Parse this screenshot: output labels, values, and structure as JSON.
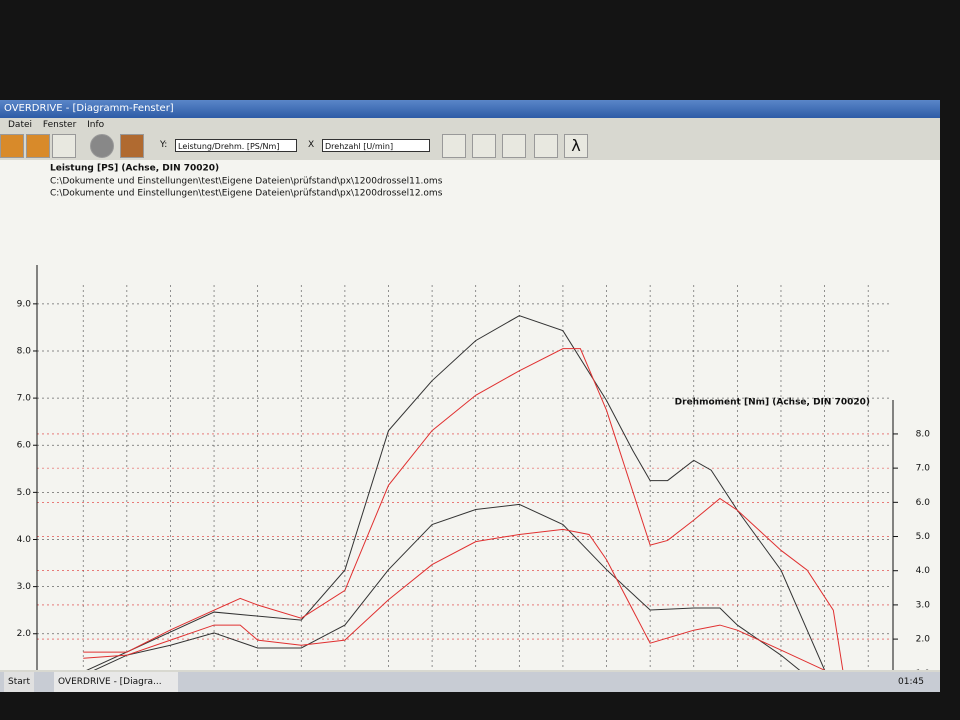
{
  "window": {
    "title": "OVERDRIVE - [Diagramm-Fenster]",
    "menu": [
      "Datei",
      "Fenster",
      "Info"
    ],
    "y_label": "Y:",
    "y_select": "Leistung/Drehm. [PS/Nm]",
    "x_label": "X",
    "x_select": "Drehzahl [U/min]",
    "lambda": "λ",
    "start": "Start",
    "task": "OVERDRIVE - [Diagra...",
    "clock": "01:45"
  },
  "chart_data": {
    "type": "line",
    "title": "Leistung [PS] (Achse, DIN 70020)",
    "y2_title": "Drehmoment [Nm] (Achse, DIN 70020)",
    "x_label": "Drehzahl [U/min]",
    "xlim": [
      4470,
      14250
    ],
    "xticks": [
      5000,
      5500,
      6000,
      6500,
      7000,
      7500,
      8000,
      8500,
      9000,
      9500,
      10000,
      10500,
      11000,
      11500,
      12000,
      12500,
      13000,
      13500,
      14000
    ],
    "ylim": [
      0,
      9.4
    ],
    "yticks": [
      {
        "value": 0,
        "label": "0.0"
      },
      {
        "value": 1,
        "label": "1.0"
      },
      {
        "value": 2,
        "label": "2.0"
      },
      {
        "value": 3,
        "label": "3.0"
      },
      {
        "value": 4,
        "label": "4.0"
      },
      {
        "value": 5,
        "label": "5.0"
      },
      {
        "value": 6,
        "label": "6.0"
      },
      {
        "value": 7,
        "label": "7.0"
      },
      {
        "value": 8,
        "label": "8.0"
      },
      {
        "value": 9,
        "label": "9.0"
      }
    ],
    "y2lim": [
      -0.6,
      8.7
    ],
    "y2ticks": [
      {
        "value": 0,
        "label": "0.0"
      },
      {
        "value": 1,
        "label": "1.0"
      },
      {
        "value": 2,
        "label": "2.0"
      },
      {
        "value": 3,
        "label": "3.0"
      },
      {
        "value": 4,
        "label": "4.0"
      },
      {
        "value": 5,
        "label": "5.0"
      },
      {
        "value": 6,
        "label": "6.0"
      },
      {
        "value": 7,
        "label": "7.0"
      },
      {
        "value": 8,
        "label": "8.0"
      }
    ],
    "grid": true,
    "series": [
      {
        "name": "C:\\Dokumente und Einstellungen\\test\\Eigene Dateien\\prüfstand\\px\\1200drossel11.oms",
        "color": "#333333",
        "x": [
          5000,
          6500,
          7500,
          8000,
          8500,
          9000,
          9500,
          10000,
          10500,
          11000,
          11300,
          11500,
          11700,
          12000,
          12200,
          12500,
          13000,
          13500,
          13600
        ],
        "values": [
          1.19,
          2.46,
          2.29,
          3.35,
          6.31,
          7.37,
          8.22,
          8.75,
          8.43,
          6.95,
          5.89,
          5.25,
          5.25,
          5.68,
          5.47,
          4.62,
          3.35,
          1.23,
          0.17
        ],
        "y2_x": [
          5000,
          5500,
          6000,
          6500,
          7000,
          7500,
          8000,
          8500,
          9000,
          9500,
          10000,
          10500,
          11000,
          11500,
          12000,
          12300,
          12500,
          13000,
          13500,
          13600
        ],
        "y2_values": [
          0.94,
          1.53,
          1.82,
          2.18,
          1.74,
          1.74,
          2.41,
          4.03,
          5.35,
          5.79,
          5.94,
          5.35,
          4.03,
          2.85,
          2.91,
          2.91,
          2.41,
          1.53,
          0.5,
          -0.24
        ]
      },
      {
        "name": "C:\\Dokumente und Einstellungen\\test\\Eigene Dateien\\prüfstand\\px\\1200drossel12.oms",
        "color": "#e03030",
        "x": [
          5000,
          5500,
          6000,
          6500,
          6800,
          7000,
          7500,
          8000,
          8500,
          9000,
          9500,
          10000,
          10500,
          10700,
          11000,
          11500,
          11700,
          12000,
          12300,
          12500,
          13000,
          13300,
          13600,
          13800
        ],
        "values": [
          1.61,
          1.61,
          2.08,
          2.5,
          2.75,
          2.61,
          2.33,
          2.92,
          5.15,
          6.31,
          7.06,
          7.58,
          8.05,
          8.05,
          6.74,
          3.88,
          3.98,
          4.41,
          4.87,
          4.62,
          3.77,
          3.35,
          2.5,
          0.17
        ],
        "y2_x": [
          5000,
          5500,
          6000,
          6500,
          6800,
          7000,
          7500,
          8000,
          8500,
          9000,
          9500,
          10000,
          10500,
          10800,
          11000,
          11500,
          12000,
          12300,
          12500,
          13000,
          13500,
          13800
        ],
        "y2_values": [
          1.44,
          1.53,
          1.97,
          2.41,
          2.41,
          1.97,
          1.82,
          1.97,
          3.15,
          4.18,
          4.85,
          5.06,
          5.21,
          5.06,
          4.32,
          1.88,
          2.26,
          2.41,
          2.26,
          1.68,
          1.09,
          -0.38
        ]
      }
    ]
  }
}
